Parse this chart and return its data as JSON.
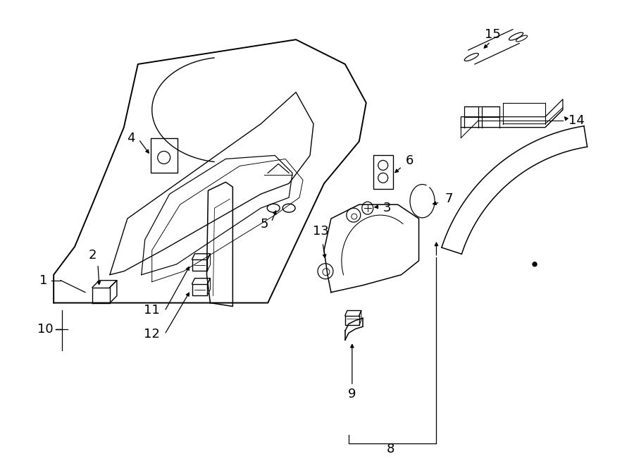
{
  "bg_color": "#ffffff",
  "line_color": "#000000",
  "fig_width": 9.0,
  "fig_height": 6.61,
  "lw": 1.1
}
